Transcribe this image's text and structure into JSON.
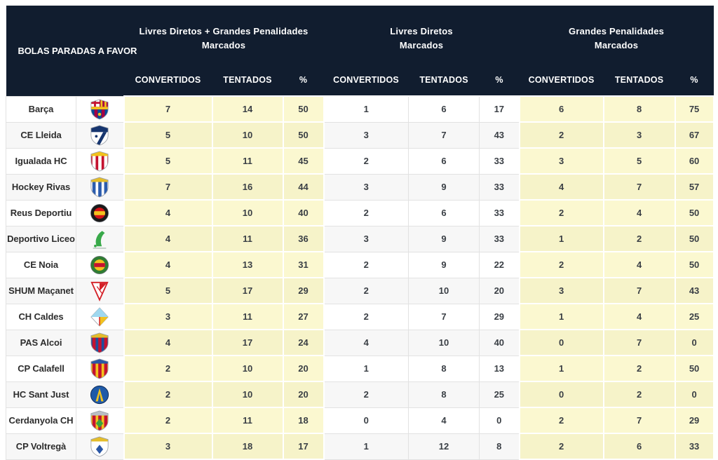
{
  "header": {
    "title": "BOLAS PARADAS A FAVOR",
    "groups": [
      {
        "line1": "Livres Diretos + Grandes Penalidades",
        "line2": "Marcados"
      },
      {
        "line1": "Livres Diretos",
        "line2": "Marcados"
      },
      {
        "line1": "Grandes Penalidades",
        "line2": "Marcados"
      }
    ],
    "sub_columns": [
      "CONVERTIDOS",
      "TENTADOS",
      "%"
    ]
  },
  "colors": {
    "header_bg": "#111d2f",
    "header_text": "#ffffff",
    "highlight": "#fbf8d0",
    "highlight_alt": "#f6f3c9",
    "row_bg": "#ffffff",
    "row_alt": "#f7f7f7",
    "grid_line": "#e2e2e2",
    "value_text": "#3a3f45",
    "team_text": "#2d2d2d"
  },
  "chart_data": {
    "type": "table",
    "title": "BOLAS PARADAS A FAVOR",
    "column_groups": [
      "Livres Diretos + Grandes Penalidades Marcados",
      "Livres Diretos Marcados",
      "Grandes Penalidades Marcados"
    ],
    "columns_per_group": [
      "CONVERTIDOS",
      "TENTADOS",
      "%"
    ],
    "rows": [
      {
        "team": "Barça",
        "logo": {
          "icon": "barca-crest-icon",
          "shape": "barca",
          "colors": [
            "#a50044",
            "#004d98",
            "#f2c21d"
          ]
        },
        "ldgp": [
          7,
          14,
          50
        ],
        "ld": [
          1,
          6,
          17
        ],
        "gp": [
          6,
          8,
          75
        ]
      },
      {
        "team": "CE Lleida",
        "logo": {
          "icon": "ce-lleida-crest-icon",
          "shape": "shield-diagonal",
          "colors": [
            "#16356f",
            "#ffffff"
          ]
        },
        "ldgp": [
          5,
          10,
          50
        ],
        "ld": [
          3,
          7,
          43
        ],
        "gp": [
          2,
          3,
          67
        ]
      },
      {
        "team": "Igualada HC",
        "logo": {
          "icon": "igualada-hc-crest-icon",
          "shape": "shield",
          "colors": [
            "#c41230",
            "#ffffff",
            "#f2c21d"
          ]
        },
        "ldgp": [
          5,
          11,
          45
        ],
        "ld": [
          2,
          6,
          33
        ],
        "gp": [
          3,
          5,
          60
        ]
      },
      {
        "team": "Hockey Rivas",
        "logo": {
          "icon": "hockey-rivas-crest-icon",
          "shape": "shield",
          "colors": [
            "#ffffff",
            "#2b5cad",
            "#e4bd2a"
          ]
        },
        "ldgp": [
          7,
          16,
          44
        ],
        "ld": [
          3,
          9,
          33
        ],
        "gp": [
          4,
          7,
          57
        ]
      },
      {
        "team": "Reus Deportiu",
        "logo": {
          "icon": "reus-deportiu-crest-icon",
          "shape": "circle",
          "colors": [
            "#1a1a1a",
            "#d41217",
            "#f2c21d"
          ]
        },
        "ldgp": [
          4,
          10,
          40
        ],
        "ld": [
          2,
          6,
          33
        ],
        "gp": [
          2,
          4,
          50
        ]
      },
      {
        "team": "Deportivo Liceo",
        "logo": {
          "icon": "deportivo-liceo-crest-icon",
          "shape": "player",
          "colors": [
            "#39a94a"
          ]
        },
        "ldgp": [
          4,
          11,
          36
        ],
        "ld": [
          3,
          9,
          33
        ],
        "gp": [
          1,
          2,
          50
        ]
      },
      {
        "team": "CE Noia",
        "logo": {
          "icon": "ce-noia-crest-icon",
          "shape": "circle",
          "colors": [
            "#2f7d32",
            "#f2c21d",
            "#c41230"
          ]
        },
        "ldgp": [
          4,
          13,
          31
        ],
        "ld": [
          2,
          9,
          22
        ],
        "gp": [
          2,
          4,
          50
        ]
      },
      {
        "team": "SHUM Maçanet",
        "logo": {
          "icon": "shum-macanet-crest-icon",
          "shape": "triangle",
          "colors": [
            "#d42027"
          ]
        },
        "ldgp": [
          5,
          17,
          29
        ],
        "ld": [
          2,
          10,
          20
        ],
        "gp": [
          3,
          7,
          43
        ]
      },
      {
        "team": "CH Caldes",
        "logo": {
          "icon": "ch-caldes-crest-icon",
          "shape": "diamond",
          "colors": [
            "#9fd8ef",
            "#ffffff",
            "#f2c21d",
            "#d42027"
          ]
        },
        "ldgp": [
          3,
          11,
          27
        ],
        "ld": [
          2,
          7,
          29
        ],
        "gp": [
          1,
          4,
          25
        ]
      },
      {
        "team": "PAS Alcoi",
        "logo": {
          "icon": "pas-alcoi-crest-icon",
          "shape": "shield",
          "colors": [
            "#1f4e9c",
            "#c41230",
            "#e4bd2a"
          ]
        },
        "ldgp": [
          4,
          17,
          24
        ],
        "ld": [
          4,
          10,
          40
        ],
        "gp": [
          0,
          7,
          0
        ]
      },
      {
        "team": "CP Calafell",
        "logo": {
          "icon": "cp-calafell-crest-icon",
          "shape": "shield",
          "colors": [
            "#f2c21d",
            "#c41230",
            "#2a57a5"
          ]
        },
        "ldgp": [
          2,
          10,
          20
        ],
        "ld": [
          1,
          8,
          13
        ],
        "gp": [
          1,
          2,
          50
        ]
      },
      {
        "team": "HC Sant Just",
        "logo": {
          "icon": "hc-sant-just-crest-icon",
          "shape": "globe",
          "colors": [
            "#1f5aa8",
            "#f2c21d"
          ]
        },
        "ldgp": [
          2,
          10,
          20
        ],
        "ld": [
          2,
          8,
          25
        ],
        "gp": [
          0,
          2,
          0
        ]
      },
      {
        "team": "Cerdanyola CH",
        "logo": {
          "icon": "cerdanyola-ch-crest-icon",
          "shape": "shield",
          "colors": [
            "#f2c21d",
            "#c41230",
            "#b9bec4",
            "#3aa13f"
          ]
        },
        "ldgp": [
          2,
          11,
          18
        ],
        "ld": [
          0,
          4,
          0
        ],
        "gp": [
          2,
          7,
          29
        ]
      },
      {
        "team": "CP Voltregà",
        "logo": {
          "icon": "cp-voltrega-crest-icon",
          "shape": "shield",
          "colors": [
            "#ffffff",
            "#ffffff",
            "#e4bd2a",
            "#2a57a5"
          ]
        },
        "ldgp": [
          3,
          18,
          17
        ],
        "ld": [
          1,
          12,
          8
        ],
        "gp": [
          2,
          6,
          33
        ]
      }
    ]
  }
}
